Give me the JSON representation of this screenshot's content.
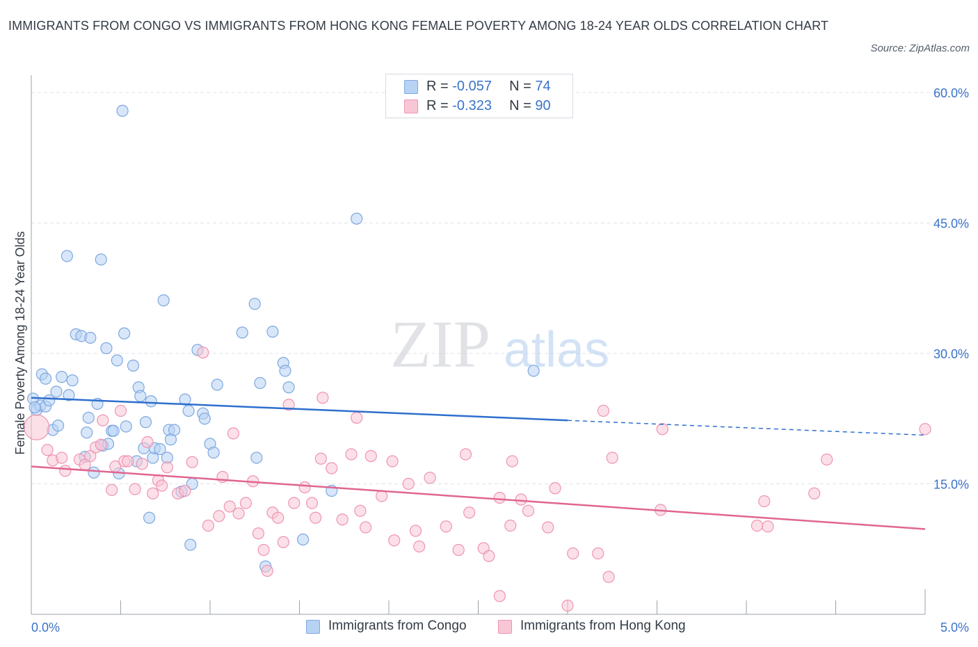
{
  "header": {
    "title": "IMMIGRANTS FROM CONGO VS IMMIGRANTS FROM HONG KONG FEMALE POVERTY AMONG 18-24 YEAR OLDS CORRELATION CHART",
    "source": "Source: ZipAtlas.com"
  },
  "watermark": {
    "zip": "ZIP",
    "atlas": "atlas"
  },
  "legend": {
    "congo": {
      "r_label": "R = ",
      "r_value": "-0.057",
      "n_label": "N = ",
      "n_value": "74"
    },
    "hongkong": {
      "r_label": "R = ",
      "r_value": "-0.323",
      "n_label": "N = ",
      "n_value": "90"
    }
  },
  "bottom_legend": {
    "congo_label": "Immigrants from Congo",
    "hongkong_label": "Immigrants from Hong Kong"
  },
  "colors": {
    "congo_fill": "#b8d2f4",
    "congo_stroke": "#7ea8df",
    "congo_line": "#2e6fcd",
    "hongkong_fill": "#f9c6d6",
    "hongkong_stroke": "#ee94b3",
    "hongkong_line": "#e0668f",
    "axis_label": "#3a73c9",
    "grid": "#dfe3e8"
  },
  "chart_data": {
    "type": "scatter",
    "title": "IMMIGRANTS FROM CONGO VS IMMIGRANTS FROM HONG KONG FEMALE POVERTY AMONG 18-24 YEAR OLDS CORRELATION CHART",
    "xlabel": "",
    "ylabel": "Female Poverty Among 18-24 Year Olds",
    "xlim": [
      0,
      5
    ],
    "ylim": [
      0,
      60
    ],
    "x_tick_labels": [
      "0.0%",
      "5.0%"
    ],
    "y_ticks": [
      15,
      30,
      45,
      60
    ],
    "y_tick_labels": [
      "15.0%",
      "30.0%",
      "45.0%",
      "60.0%"
    ],
    "grid": true,
    "legend_position": "top-center",
    "series": [
      {
        "name": "Immigrants from Congo",
        "r": -0.057,
        "n": 74,
        "trend": {
          "x": [
            0.0,
            3.0
          ],
          "y": [
            24.9,
            22.3
          ]
        },
        "trend_dashed": {
          "x": [
            3.0,
            5.0
          ],
          "y": [
            22.3,
            20.6
          ]
        },
        "points": [
          [
            0.01,
            24.8
          ],
          [
            0.03,
            23.5
          ],
          [
            0.05,
            24.0
          ],
          [
            0.06,
            27.6
          ],
          [
            0.08,
            27.1
          ],
          [
            0.08,
            23.9
          ],
          [
            0.1,
            24.6
          ],
          [
            0.12,
            21.2
          ],
          [
            0.14,
            25.6
          ],
          [
            0.15,
            21.7
          ],
          [
            0.17,
            27.3
          ],
          [
            0.2,
            41.2
          ],
          [
            0.21,
            25.2
          ],
          [
            0.23,
            26.9
          ],
          [
            0.25,
            32.2
          ],
          [
            0.28,
            32.0
          ],
          [
            0.3,
            18.1
          ],
          [
            0.31,
            20.9
          ],
          [
            0.32,
            22.6
          ],
          [
            0.33,
            31.8
          ],
          [
            0.35,
            16.3
          ],
          [
            0.37,
            24.2
          ],
          [
            0.39,
            40.8
          ],
          [
            0.4,
            19.4
          ],
          [
            0.42,
            30.6
          ],
          [
            0.43,
            19.6
          ],
          [
            0.45,
            21.1
          ],
          [
            0.46,
            21.1
          ],
          [
            0.48,
            29.2
          ],
          [
            0.49,
            16.2
          ],
          [
            0.51,
            57.9
          ],
          [
            0.52,
            32.3
          ],
          [
            0.53,
            21.6
          ],
          [
            0.57,
            28.6
          ],
          [
            0.59,
            17.6
          ],
          [
            0.6,
            26.1
          ],
          [
            0.61,
            25.1
          ],
          [
            0.63,
            19.1
          ],
          [
            0.64,
            22.1
          ],
          [
            0.66,
            11.1
          ],
          [
            0.67,
            24.5
          ],
          [
            0.68,
            18.0
          ],
          [
            0.69,
            19.1
          ],
          [
            0.74,
            36.1
          ],
          [
            0.76,
            18.0
          ],
          [
            0.77,
            21.2
          ],
          [
            0.78,
            20.1
          ],
          [
            0.8,
            21.2
          ],
          [
            0.84,
            14.1
          ],
          [
            0.86,
            24.7
          ],
          [
            0.88,
            23.4
          ],
          [
            0.89,
            8.0
          ],
          [
            0.9,
            15.0
          ],
          [
            0.93,
            30.4
          ],
          [
            0.96,
            23.1
          ],
          [
            0.97,
            22.5
          ],
          [
            1.0,
            19.6
          ],
          [
            1.02,
            18.6
          ],
          [
            1.04,
            26.4
          ],
          [
            1.18,
            32.4
          ],
          [
            1.25,
            35.7
          ],
          [
            1.26,
            18.0
          ],
          [
            1.28,
            26.6
          ],
          [
            1.31,
            5.5
          ],
          [
            1.35,
            32.5
          ],
          [
            1.41,
            28.9
          ],
          [
            1.42,
            28.0
          ],
          [
            1.44,
            26.1
          ],
          [
            1.52,
            8.6
          ],
          [
            1.68,
            14.2
          ],
          [
            1.82,
            45.5
          ],
          [
            2.81,
            28.0
          ],
          [
            0.02,
            23.8
          ],
          [
            0.72,
            19.0
          ]
        ]
      },
      {
        "name": "Immigrants from Hong Kong",
        "r": -0.323,
        "n": 90,
        "trend": {
          "x": [
            0.0,
            5.0
          ],
          "y": [
            17.0,
            9.8
          ]
        },
        "points": [
          [
            0.03,
            21.5
          ],
          [
            0.09,
            18.9
          ],
          [
            0.12,
            17.7
          ],
          [
            0.17,
            18.0
          ],
          [
            0.19,
            16.5
          ],
          [
            0.27,
            17.8
          ],
          [
            0.3,
            17.2
          ],
          [
            0.33,
            18.2
          ],
          [
            0.36,
            19.2
          ],
          [
            0.39,
            19.5
          ],
          [
            0.4,
            22.3
          ],
          [
            0.45,
            14.3
          ],
          [
            0.47,
            17.0
          ],
          [
            0.5,
            23.4
          ],
          [
            0.52,
            17.6
          ],
          [
            0.54,
            17.6
          ],
          [
            0.58,
            14.4
          ],
          [
            0.62,
            17.3
          ],
          [
            0.65,
            19.8
          ],
          [
            0.68,
            13.9
          ],
          [
            0.71,
            15.4
          ],
          [
            0.73,
            14.8
          ],
          [
            0.76,
            16.9
          ],
          [
            0.82,
            13.9
          ],
          [
            0.86,
            14.2
          ],
          [
            0.9,
            17.5
          ],
          [
            0.96,
            30.1
          ],
          [
            0.99,
            10.2
          ],
          [
            1.05,
            11.3
          ],
          [
            1.07,
            15.8
          ],
          [
            1.11,
            12.4
          ],
          [
            1.13,
            20.8
          ],
          [
            1.16,
            11.6
          ],
          [
            1.2,
            12.8
          ],
          [
            1.24,
            15.3
          ],
          [
            1.27,
            9.3
          ],
          [
            1.3,
            7.4
          ],
          [
            1.32,
            5.0
          ],
          [
            1.35,
            11.7
          ],
          [
            1.38,
            11.1
          ],
          [
            1.41,
            8.3
          ],
          [
            1.44,
            24.1
          ],
          [
            1.47,
            12.8
          ],
          [
            1.53,
            14.6
          ],
          [
            1.57,
            12.8
          ],
          [
            1.59,
            11.1
          ],
          [
            1.62,
            17.9
          ],
          [
            1.68,
            16.8
          ],
          [
            1.74,
            10.9
          ],
          [
            1.79,
            18.4
          ],
          [
            1.82,
            22.6
          ],
          [
            1.84,
            11.9
          ],
          [
            1.87,
            10.0
          ],
          [
            1.9,
            18.2
          ],
          [
            1.96,
            13.6
          ],
          [
            2.02,
            17.6
          ],
          [
            2.03,
            8.5
          ],
          [
            2.11,
            15.0
          ],
          [
            2.15,
            9.6
          ],
          [
            2.17,
            7.8
          ],
          [
            2.23,
            15.7
          ],
          [
            2.32,
            10.1
          ],
          [
            2.39,
            7.4
          ],
          [
            2.43,
            18.4
          ],
          [
            2.45,
            11.7
          ],
          [
            2.53,
            7.6
          ],
          [
            2.56,
            6.7
          ],
          [
            2.62,
            13.4
          ],
          [
            2.68,
            10.2
          ],
          [
            2.69,
            17.6
          ],
          [
            2.74,
            13.2
          ],
          [
            2.78,
            11.9
          ],
          [
            2.89,
            10.0
          ],
          [
            2.93,
            14.5
          ],
          [
            3.03,
            7.0
          ],
          [
            3.17,
            7.0
          ],
          [
            3.2,
            23.4
          ],
          [
            3.23,
            4.3
          ],
          [
            3.25,
            18.0
          ],
          [
            3.52,
            12.0
          ],
          [
            3.53,
            21.3
          ],
          [
            4.06,
            10.2
          ],
          [
            4.1,
            13.0
          ],
          [
            4.12,
            10.1
          ],
          [
            4.38,
            13.9
          ],
          [
            4.45,
            17.8
          ],
          [
            5.0,
            21.3
          ],
          [
            1.63,
            24.9
          ],
          [
            2.62,
            2.1
          ],
          [
            3.0,
            1.0
          ]
        ]
      }
    ]
  }
}
